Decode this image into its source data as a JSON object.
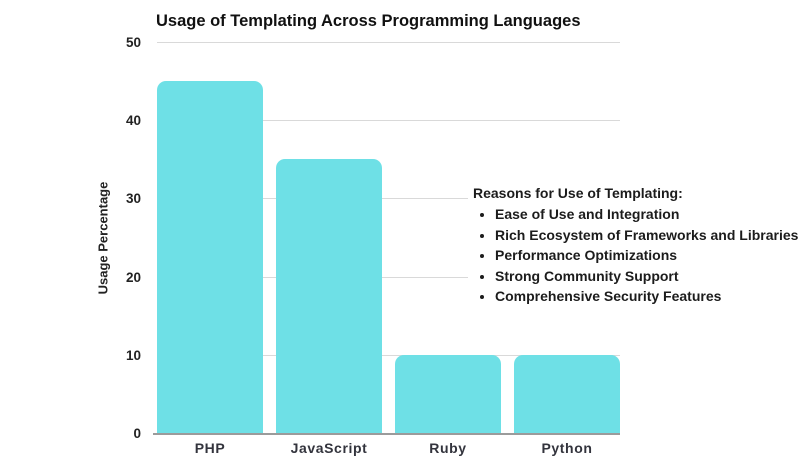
{
  "chart_data": {
    "type": "bar",
    "title": "Usage of Templating Across Programming Languages",
    "categories": [
      "PHP",
      "JavaScript",
      "Ruby",
      "Python"
    ],
    "values": [
      45,
      35,
      10,
      10
    ],
    "xlabel": "",
    "ylabel": "Usage Percentage",
    "ylim": [
      0,
      50
    ],
    "yticks": [
      0,
      10,
      20,
      30,
      40,
      50
    ],
    "grid": true,
    "legend": false,
    "bar_color": "#6EE0E6",
    "gridline_color": "#D9D9D9",
    "axis_line_color": "#9B9B9B",
    "text_color": "#1C1C1C"
  },
  "annotation": {
    "heading": "Reasons for Use of Templating:",
    "bullets": [
      "Ease of Use and Integration",
      "Rich Ecosystem of Frameworks and Libraries",
      "Performance Optimizations",
      "Strong Community Support",
      "Comprehensive Security Features"
    ]
  }
}
